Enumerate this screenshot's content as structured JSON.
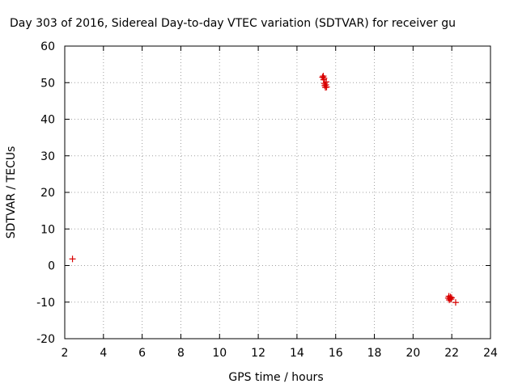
{
  "chart_data": {
    "type": "scatter",
    "title": "Day 303 of 2016, Sidereal Day-to-day VTEC variation (SDTVAR) for receiver gu",
    "xlabel": "GPS time / hours",
    "ylabel": "SDTVAR / TECUs",
    "xlim": [
      2,
      24
    ],
    "ylim": [
      -20,
      60
    ],
    "xticks": [
      2,
      4,
      6,
      8,
      10,
      12,
      14,
      16,
      18,
      20,
      22,
      24
    ],
    "yticks": [
      -20,
      -10,
      0,
      10,
      20,
      30,
      40,
      50,
      60
    ],
    "grid": true,
    "marker": "+",
    "color": "#d80000",
    "points": [
      [
        2.4,
        1.8
      ],
      [
        15.32,
        51.5
      ],
      [
        15.36,
        51.8
      ],
      [
        15.38,
        50.8
      ],
      [
        15.4,
        51.2
      ],
      [
        15.42,
        49.8
      ],
      [
        15.44,
        49.2
      ],
      [
        15.47,
        48.7
      ],
      [
        15.49,
        49.4
      ],
      [
        15.51,
        50.2
      ],
      [
        15.53,
        48.8
      ],
      [
        21.82,
        -8.9
      ],
      [
        21.85,
        -8.4
      ],
      [
        21.87,
        -9.4
      ],
      [
        21.9,
        -9.0
      ],
      [
        21.93,
        -8.6
      ],
      [
        21.96,
        -9.2
      ],
      [
        21.99,
        -8.8
      ],
      [
        22.2,
        -10.1
      ]
    ]
  }
}
